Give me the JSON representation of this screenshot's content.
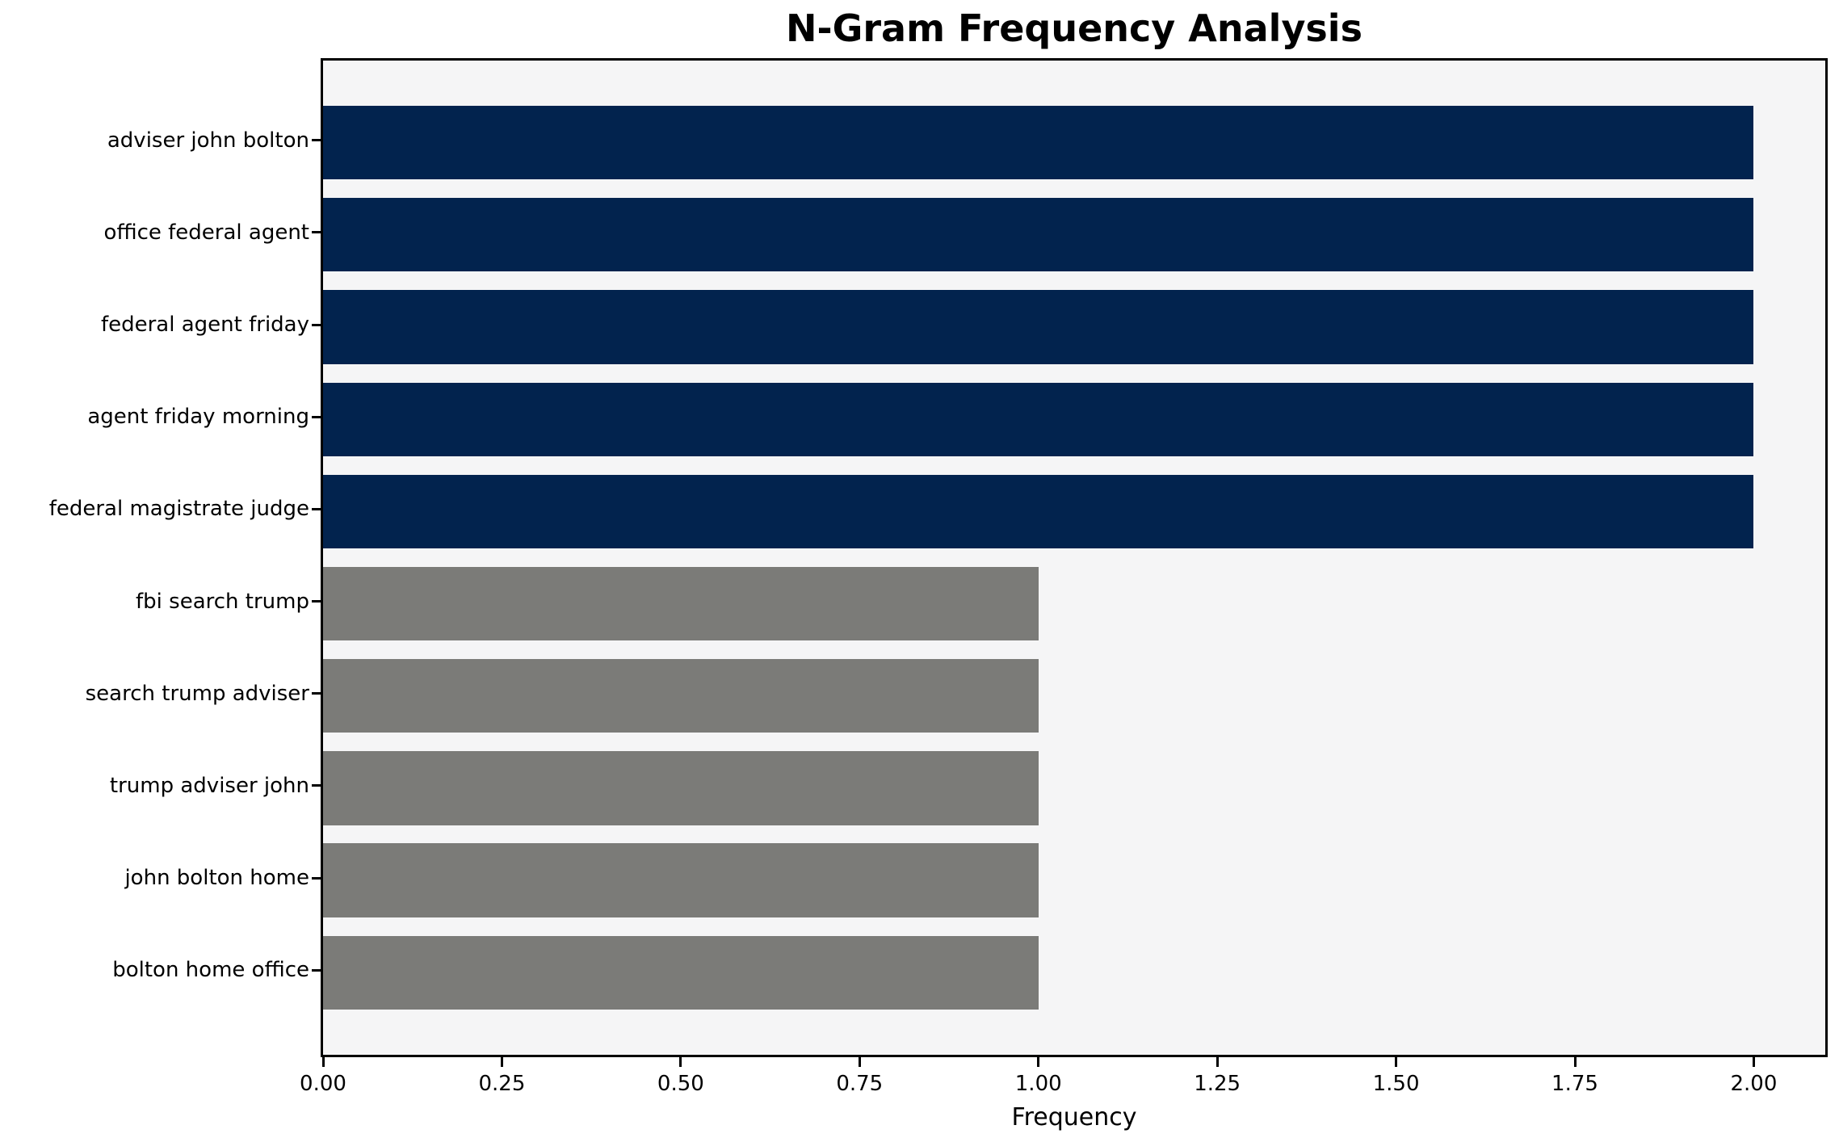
{
  "chart_data": {
    "type": "bar",
    "orientation": "horizontal",
    "title": "N-Gram Frequency Analysis",
    "xlabel": "Frequency",
    "ylabel": "",
    "categories": [
      "adviser john bolton",
      "office federal agent",
      "federal agent friday",
      "agent friday morning",
      "federal magistrate judge",
      "fbi search trump",
      "search trump adviser",
      "trump adviser john",
      "john bolton home",
      "bolton home office"
    ],
    "values": [
      2,
      2,
      2,
      2,
      2,
      1,
      1,
      1,
      1,
      1
    ],
    "bar_colors": [
      "#02234e",
      "#02234e",
      "#02234e",
      "#02234e",
      "#02234e",
      "#7b7b78",
      "#7b7b78",
      "#7b7b78",
      "#7b7b78",
      "#7b7b78"
    ],
    "xticks": [
      0.0,
      0.25,
      0.5,
      0.75,
      1.0,
      1.25,
      1.5,
      1.75,
      2.0
    ],
    "xtick_labels": [
      "0.00",
      "0.25",
      "0.50",
      "0.75",
      "1.00",
      "1.25",
      "1.50",
      "1.75",
      "2.00"
    ],
    "xlim": [
      0,
      2.1
    ],
    "grid": false,
    "legend": "none",
    "colors": {
      "high_frequency_bar": "#02234e",
      "low_frequency_bar": "#7b7b78",
      "plot_background": "#f5f5f6",
      "figure_background": "#ffffff",
      "spine": "#000000",
      "text": "#000000"
    }
  }
}
